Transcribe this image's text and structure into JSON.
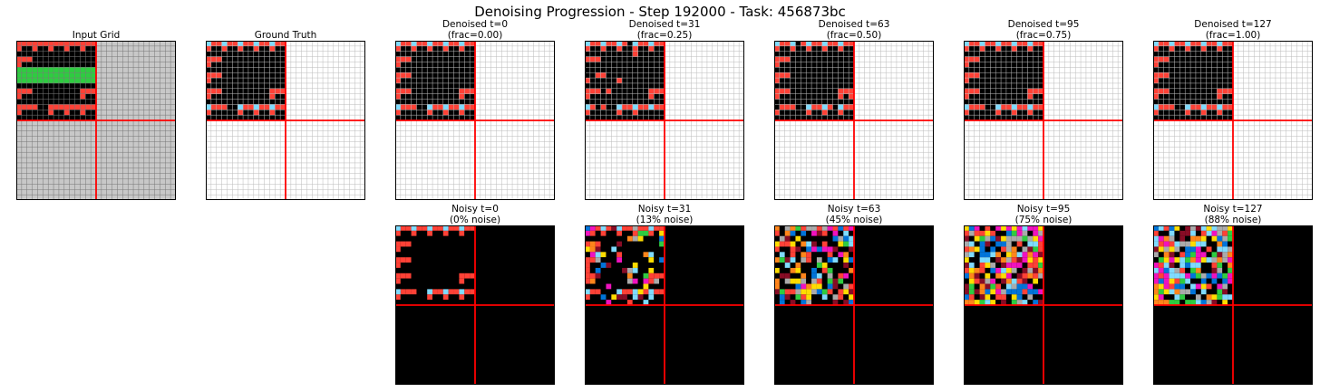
{
  "figure": {
    "suptitle": "Denoising Progression - Step 192000 - Task: 456873bc",
    "colors": {
      "black": "#000000",
      "red": "#ff4136",
      "cyan": "#7fdbff",
      "green": "#2ecc40",
      "gray": "#c8c8c8",
      "grid_line_dark": "#777777",
      "grid_line_light": "#bbbbbb",
      "divider": "#ff0000"
    },
    "panels": {
      "input": {
        "title": "Input Grid"
      },
      "truth": {
        "title": "Ground Truth"
      },
      "denoised": [
        {
          "title": "Denoised t=0\n(frac=0.00)"
        },
        {
          "title": "Denoised t=31\n(frac=0.25)"
        },
        {
          "title": "Denoised t=63\n(frac=0.50)"
        },
        {
          "title": "Denoised t=95\n(frac=0.75)"
        },
        {
          "title": "Denoised t=127\n(frac=1.00)"
        }
      ],
      "noisy": [
        {
          "title": "Noisy t=0\n(0% noise)"
        },
        {
          "title": "Noisy t=31\n(13% noise)"
        },
        {
          "title": "Noisy t=63\n(45% noise)"
        },
        {
          "title": "Noisy t=95\n(75% noise)"
        },
        {
          "title": "Noisy t=127\n(88% noise)"
        }
      ]
    }
  }
}
